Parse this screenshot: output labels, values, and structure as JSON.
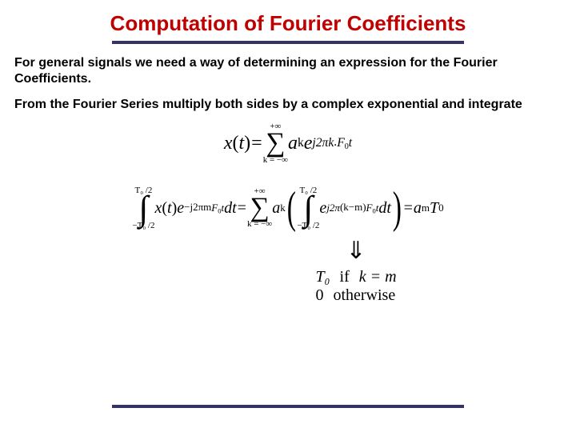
{
  "title": "Computation of Fourier Coefficients",
  "colors": {
    "title": "#c00000",
    "rule": "#333366",
    "text": "#000000",
    "background": "#ffffff"
  },
  "paragraphs": {
    "p1": "For general signals we need a way of determining an expression for the Fourier Coefficients.",
    "p2": "From the Fourier Series multiply both sides by a complex exponential and integrate"
  },
  "equations": {
    "fourier_series": {
      "lhs": {
        "func": "x",
        "arg": "t"
      },
      "sum": {
        "lower": "k = −∞",
        "upper": "+∞",
        "symbol": "∑"
      },
      "coef": {
        "a": "a",
        "sub": "k"
      },
      "exp": {
        "e": "e",
        "power_prefix": "j2π",
        "k": "k",
        "F0": "F",
        "F0sub": "0",
        "t": "t"
      }
    },
    "integral_identity": {
      "int": {
        "symbol": "∫",
        "lower": "−T₀ /2",
        "upper": "T₀ /2"
      },
      "integrand_left": {
        "x": "x",
        "arg": "t",
        "e": "e",
        "power": "−j2πm",
        "F0": "F",
        "F0sub": "0",
        "t": "t",
        "dt": "dt"
      },
      "equals": "=",
      "sum": {
        "lower": "k = −∞",
        "upper": "+∞",
        "symbol": "∑"
      },
      "coef": {
        "a": "a",
        "sub": "k"
      },
      "inner_int": {
        "symbol": "∫",
        "lower": "−T₀ /2",
        "upper": "T₀ /2"
      },
      "inner_exp": {
        "e": "e",
        "power_prefix": "j2π",
        "km": "(k−m)",
        "F0": "F",
        "F0sub": "0",
        "t": "t",
        "dt": "dt"
      },
      "rhs": {
        "a": "a",
        "sub": "m",
        "T": "T",
        "Tsub": "0"
      }
    },
    "arrow": "⇓",
    "cases": {
      "row1": {
        "val": "T₀",
        "if": "if",
        "cond": "k = m"
      },
      "row2": {
        "val": "0",
        "cond": "otherwise"
      }
    }
  }
}
